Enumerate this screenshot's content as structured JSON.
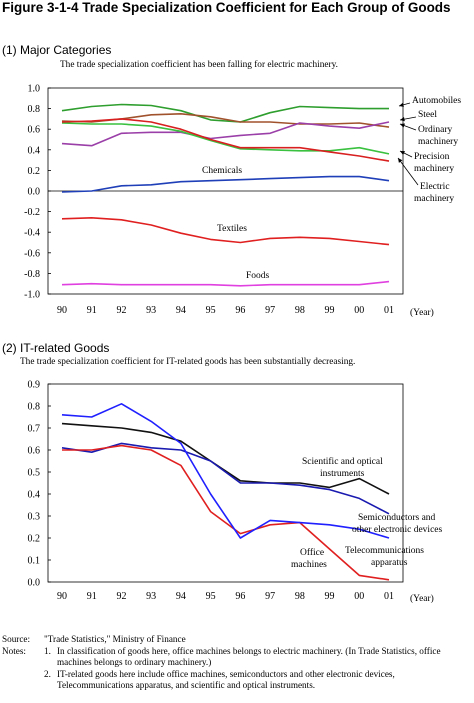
{
  "figure": {
    "title": "Figure 3-1-4 Trade Specialization Coefficient for Each Group of Goods"
  },
  "colors": {
    "automobiles": "#2e9e2e",
    "steel": "#a0522d",
    "ordinary_machinery": "#9b3fa8",
    "precision_machinery": "#39c13f",
    "electric_machinery": "#d82020",
    "chemicals": "#1f3fb8",
    "textiles": "#e02020",
    "foods": "#e040e0",
    "scientific_optical": "#111111",
    "semiconductors": "#1a1ab0",
    "telecom": "#e02020",
    "office_machines": "#2020ff"
  },
  "chart_data": [
    {
      "type": "line",
      "title": "(1) Major Categories",
      "subtitle": "The trade specialization coefficient has been falling for electric machinery.",
      "x": [
        "90",
        "91",
        "92",
        "93",
        "94",
        "95",
        "96",
        "97",
        "98",
        "99",
        "00",
        "01"
      ],
      "xlabel": "(Year)",
      "ylabel": "",
      "ylim": [
        -1.0,
        1.0
      ],
      "yticks": [
        "1.0",
        "0.8",
        "0.6",
        "0.4",
        "0.2",
        "0.0",
        "-0.2",
        "-0.4",
        "-0.6",
        "-0.8",
        "-1.0"
      ],
      "grid": false,
      "series": [
        {
          "name": "Automobiles",
          "key": "automobiles",
          "values": [
            0.78,
            0.82,
            0.84,
            0.83,
            0.78,
            0.69,
            0.67,
            0.76,
            0.82,
            0.81,
            0.8,
            0.8
          ]
        },
        {
          "name": "Steel",
          "key": "steel",
          "values": [
            0.68,
            0.67,
            0.7,
            0.74,
            0.75,
            0.72,
            0.67,
            0.67,
            0.65,
            0.65,
            0.66,
            0.62
          ]
        },
        {
          "name": "Ordinary machinery",
          "key": "ordinary_machinery",
          "values": [
            0.46,
            0.44,
            0.56,
            0.57,
            0.57,
            0.51,
            0.54,
            0.56,
            0.66,
            0.63,
            0.61,
            0.67
          ]
        },
        {
          "name": "Precision machinery",
          "key": "precision_machinery",
          "values": [
            0.66,
            0.65,
            0.65,
            0.63,
            0.58,
            0.49,
            0.41,
            0.4,
            0.39,
            0.39,
            0.42,
            0.36
          ]
        },
        {
          "name": "Electric machinery",
          "key": "electric_machinery",
          "values": [
            0.67,
            0.68,
            0.7,
            0.67,
            0.6,
            0.5,
            0.42,
            0.42,
            0.42,
            0.38,
            0.34,
            0.29
          ]
        },
        {
          "name": "Chemicals",
          "key": "chemicals",
          "values": [
            -0.01,
            0.0,
            0.05,
            0.06,
            0.09,
            0.1,
            0.11,
            0.12,
            0.13,
            0.14,
            0.14,
            0.1
          ]
        },
        {
          "name": "Textiles",
          "key": "textiles",
          "values": [
            -0.27,
            -0.26,
            -0.28,
            -0.33,
            -0.41,
            -0.47,
            -0.5,
            -0.46,
            -0.45,
            -0.46,
            -0.49,
            -0.52
          ]
        },
        {
          "name": "Foods",
          "key": "foods",
          "values": [
            -0.91,
            -0.9,
            -0.91,
            -0.91,
            -0.91,
            -0.91,
            -0.92,
            -0.91,
            -0.91,
            -0.91,
            -0.91,
            -0.88
          ]
        }
      ],
      "labels": [
        {
          "text": "Automobiles",
          "key": "automobiles"
        },
        {
          "text": "Steel",
          "key": "steel"
        },
        {
          "text": "Ordinary",
          "key": "ordinary_1"
        },
        {
          "text": "machinery",
          "key": "ordinary_2"
        },
        {
          "text": "Precision",
          "key": "precision_1"
        },
        {
          "text": "machinery",
          "key": "precision_2"
        },
        {
          "text": "Electric",
          "key": "electric_1"
        },
        {
          "text": "machinery",
          "key": "electric_2"
        },
        {
          "text": "Chemicals",
          "key": "chemicals"
        },
        {
          "text": "Textiles",
          "key": "textiles"
        },
        {
          "text": "Foods",
          "key": "foods"
        }
      ]
    },
    {
      "type": "line",
      "title": "(2) IT-related Goods",
      "subtitle": "The trade specialization coefficient for IT-related goods has been substantially decreasing.",
      "x": [
        "90",
        "91",
        "92",
        "93",
        "94",
        "95",
        "96",
        "97",
        "98",
        "99",
        "00",
        "01"
      ],
      "xlabel": "(Year)",
      "ylabel": "",
      "ylim": [
        0.0,
        0.9
      ],
      "yticks": [
        "0.9",
        "0.8",
        "0.7",
        "0.6",
        "0.5",
        "0.4",
        "0.3",
        "0.2",
        "0.1",
        "0.0"
      ],
      "grid": false,
      "series": [
        {
          "name": "Scientific and optical instruments",
          "key": "scientific_optical",
          "values": [
            0.72,
            0.71,
            0.7,
            0.68,
            0.64,
            0.55,
            0.46,
            0.45,
            0.45,
            0.43,
            0.47,
            0.4
          ]
        },
        {
          "name": "Semiconductors and other electronic devices",
          "key": "semiconductors",
          "values": [
            0.61,
            0.59,
            0.63,
            0.61,
            0.6,
            0.55,
            0.45,
            0.45,
            0.44,
            0.42,
            0.38,
            0.31
          ]
        },
        {
          "name": "Telecommunications apparatus",
          "key": "telecom",
          "values": [
            0.6,
            0.6,
            0.62,
            0.6,
            0.53,
            0.32,
            0.22,
            0.26,
            0.27,
            0.15,
            0.03,
            0.01
          ]
        },
        {
          "name": "Office machines",
          "key": "office_machines",
          "values": [
            0.76,
            0.75,
            0.81,
            0.73,
            0.63,
            0.4,
            0.2,
            0.28,
            0.27,
            0.26,
            0.24,
            0.2
          ]
        }
      ],
      "labels": [
        {
          "text": "Scientific and optical",
          "key": "sci_1"
        },
        {
          "text": "instruments",
          "key": "sci_2"
        },
        {
          "text": "Semiconductors and",
          "key": "semi_1"
        },
        {
          "text": "other electronic devices",
          "key": "semi_2"
        },
        {
          "text": "Telecommunications",
          "key": "tele_1"
        },
        {
          "text": "apparatus",
          "key": "tele_2"
        },
        {
          "text": "Office",
          "key": "office_1"
        },
        {
          "text": "machines",
          "key": "office_2"
        }
      ]
    }
  ],
  "footer": {
    "source_label": "Source:",
    "source_text": "\"Trade Statistics,\" Ministry of Finance",
    "notes_label": "Notes:",
    "notes": [
      {
        "num": "1.",
        "text": "In classification of goods here, office machines belongs to electric machinery. (In Trade Statistics, office machines belongs to ordinary machinery.)"
      },
      {
        "num": "2.",
        "text": "IT-related goods here include office machines, semiconductors and other electronic devices, Telecommunications apparatus, and scientific and optical instruments."
      }
    ]
  }
}
